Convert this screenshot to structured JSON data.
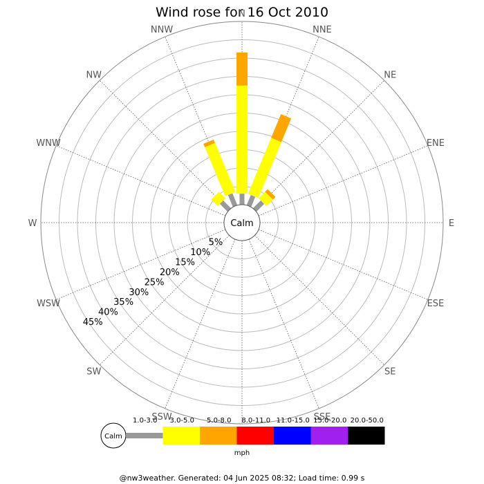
{
  "chart_data": {
    "type": "wind-rose",
    "title": "Wind rose for 16 Oct 2010",
    "calm_label": "Calm",
    "directions": [
      "N",
      "NNE",
      "NE",
      "ENE",
      "E",
      "ESE",
      "SE",
      "SSE",
      "S",
      "SSW",
      "SW",
      "WSW",
      "W",
      "WNW",
      "NW",
      "NNW"
    ],
    "ring_labels": [
      "5%",
      "10%",
      "15%",
      "20%",
      "25%",
      "30%",
      "35%",
      "40%",
      "45%"
    ],
    "ring_values": [
      5,
      10,
      15,
      20,
      25,
      30,
      35,
      40,
      45
    ],
    "r_max": 45,
    "speed_bins": [
      {
        "label": "1.0-3.0",
        "color": "#999999"
      },
      {
        "label": "3.0-5.0",
        "color": "#ffff00"
      },
      {
        "label": "5.0-8.0",
        "color": "#ffa500"
      },
      {
        "label": "8.0-11.0",
        "color": "#ff0000"
      },
      {
        "label": "11.0-15.0",
        "color": "#0000ff"
      },
      {
        "label": "15.0-20.0",
        "color": "#a020f0"
      },
      {
        "label": "20.0-50.0",
        "color": "#000000"
      }
    ],
    "legend_unit": "mph",
    "series": [
      {
        "direction": "N",
        "segments": [
          3.0,
          29.5,
          9.0,
          0,
          0,
          0,
          0
        ]
      },
      {
        "direction": "NNE",
        "segments": [
          3.0,
          16.5,
          7.0,
          0,
          0,
          0,
          0
        ]
      },
      {
        "direction": "NE",
        "segments": [
          3.0,
          2.5,
          1.0,
          0,
          0,
          0,
          0
        ]
      },
      {
        "direction": "ENE",
        "segments": [
          0,
          0,
          0,
          0,
          0,
          0,
          0
        ]
      },
      {
        "direction": "E",
        "segments": [
          0,
          0,
          0,
          0,
          0,
          0,
          0
        ]
      },
      {
        "direction": "ESE",
        "segments": [
          0,
          0,
          0,
          0,
          0,
          0,
          0
        ]
      },
      {
        "direction": "SE",
        "segments": [
          0,
          0,
          0,
          0,
          0,
          0,
          0
        ]
      },
      {
        "direction": "SSE",
        "segments": [
          0,
          0,
          0,
          0,
          0,
          0,
          0
        ]
      },
      {
        "direction": "S",
        "segments": [
          0,
          0,
          0,
          0,
          0,
          0,
          0
        ]
      },
      {
        "direction": "SSW",
        "segments": [
          0,
          0,
          0,
          0,
          0,
          0,
          0
        ]
      },
      {
        "direction": "SW",
        "segments": [
          0,
          0,
          0,
          0,
          0,
          0,
          0
        ]
      },
      {
        "direction": "WSW",
        "segments": [
          0,
          0,
          0,
          0,
          0,
          0,
          0
        ]
      },
      {
        "direction": "W",
        "segments": [
          0,
          0,
          0,
          0,
          0,
          0,
          0
        ]
      },
      {
        "direction": "WNW",
        "segments": [
          0,
          0,
          0,
          0,
          0,
          0,
          0
        ]
      },
      {
        "direction": "NW",
        "segments": [
          3.0,
          2.5,
          0,
          0,
          0,
          0,
          0
        ]
      },
      {
        "direction": "NNW",
        "segments": [
          3.5,
          14.5,
          1.0,
          0,
          0,
          0,
          0
        ]
      }
    ]
  },
  "footer": "@nw3weather. Generated: 04 Jun 2025 08:32; Load time: 0.99 s"
}
